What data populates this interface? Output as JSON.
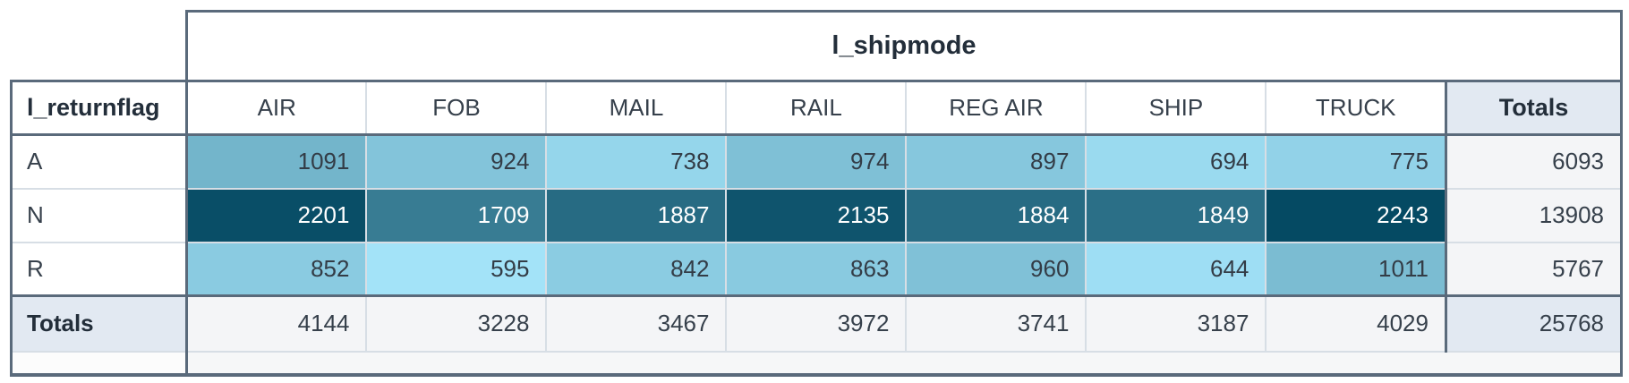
{
  "table": {
    "col_dimension_label": "l_shipmode",
    "row_dimension_label": "l_returnflag",
    "totals_label": "Totals"
  },
  "chart_data": {
    "type": "heatmap",
    "column_dimension": "l_shipmode",
    "row_dimension": "l_returnflag",
    "columns": [
      "AIR",
      "FOB",
      "MAIL",
      "RAIL",
      "REG AIR",
      "SHIP",
      "TRUCK"
    ],
    "rows": [
      "A",
      "N",
      "R"
    ],
    "values": [
      [
        1091,
        924,
        738,
        974,
        897,
        694,
        775
      ],
      [
        2201,
        1709,
        1887,
        2135,
        1884,
        1849,
        2243
      ],
      [
        852,
        595,
        842,
        863,
        960,
        644,
        1011
      ]
    ],
    "row_totals": [
      6093,
      13908,
      5767
    ],
    "col_totals": [
      4144,
      3228,
      3467,
      3972,
      3741,
      3187,
      4029
    ],
    "grand_total": 25768,
    "color_scale": {
      "min_value": 595,
      "max_value": 2243,
      "min_color": "#a3e3f8",
      "max_color": "#054a63",
      "light_text_threshold": 0.55,
      "dark_text": "#333c46",
      "light_text": "#ffffff"
    }
  },
  "colors": {
    "border_dark": "#5a6a7b",
    "border_light": "#d7dee5",
    "totals_blue_bg": "#e2e9f2",
    "totals_gray_bg": "#f4f5f7",
    "footer_strip_bg": "#f6f7f8",
    "footer_label_bg": "#fcfcfc",
    "header_text": "#36404b",
    "bold_text": "#232e3a",
    "page_bg": "#ffffff"
  }
}
